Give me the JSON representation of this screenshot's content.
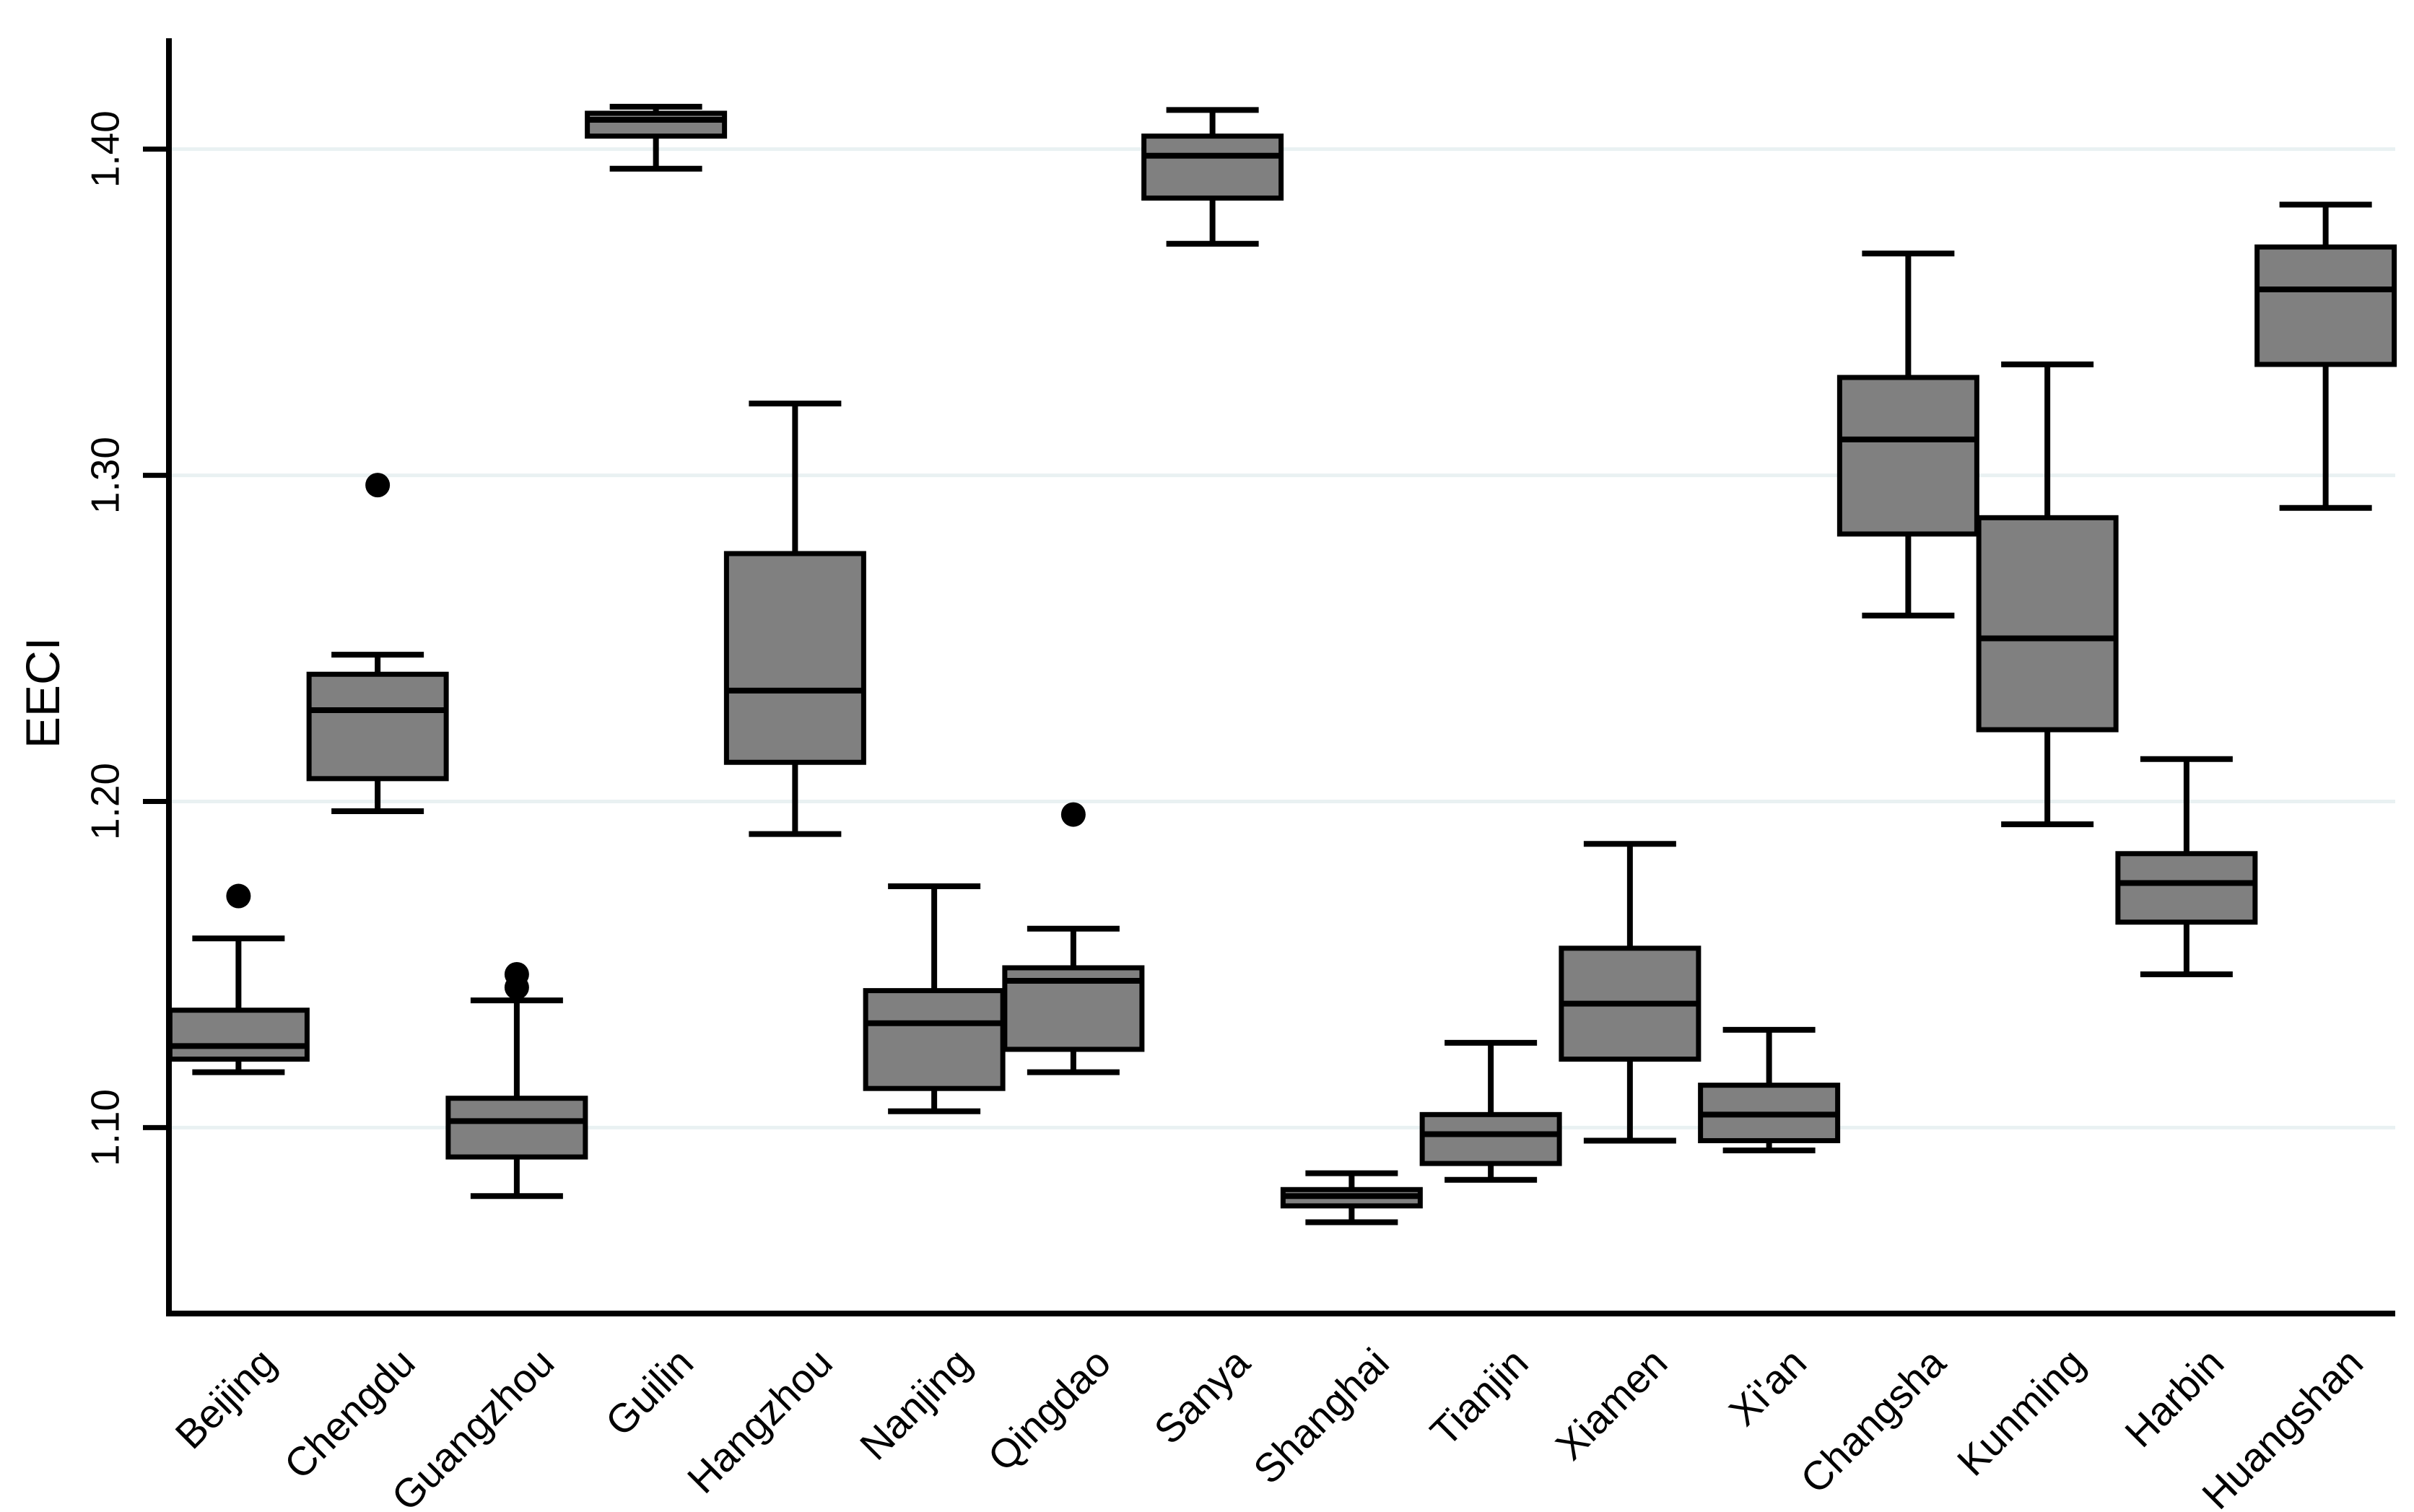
{
  "chart_data": {
    "type": "box",
    "title": "",
    "xlabel": "",
    "ylabel": "EECI",
    "ylim": [
      1.043,
      1.434
    ],
    "yticks": [
      1.1,
      1.2,
      1.3,
      1.4
    ],
    "ytick_labels": [
      "1.10",
      "1.20",
      "1.30",
      "1.40"
    ],
    "grid": "horizontal-gridlines-on",
    "legend": "none",
    "categories": [
      "Beijing",
      "Chengdu",
      "Guangzhou",
      "Guilin",
      "Hangzhou",
      "Nanjing",
      "Qingdao",
      "Sanya",
      "Shanghai",
      "Tianjin",
      "Xiamen",
      "Xi'an",
      "Changsha",
      "Kunming",
      "Harbin",
      "Huangshan"
    ],
    "series": [
      {
        "name": "Beijing",
        "whisker_low": 1.117,
        "q1": 1.121,
        "median": 1.125,
        "q3": 1.136,
        "whisker_high": 1.158,
        "outliers": [
          1.171
        ]
      },
      {
        "name": "Chengdu",
        "whisker_low": 1.197,
        "q1": 1.207,
        "median": 1.228,
        "q3": 1.239,
        "whisker_high": 1.245,
        "outliers": [
          1.297
        ]
      },
      {
        "name": "Guangzhou",
        "whisker_low": 1.079,
        "q1": 1.091,
        "median": 1.102,
        "q3": 1.109,
        "whisker_high": 1.139,
        "outliers": [
          1.143,
          1.147
        ]
      },
      {
        "name": "Guilin",
        "whisker_low": 1.394,
        "q1": 1.404,
        "median": 1.409,
        "q3": 1.411,
        "whisker_high": 1.413,
        "outliers": []
      },
      {
        "name": "Hangzhou",
        "whisker_low": 1.19,
        "q1": 1.212,
        "median": 1.234,
        "q3": 1.276,
        "whisker_high": 1.322,
        "outliers": []
      },
      {
        "name": "Nanjing",
        "whisker_low": 1.105,
        "q1": 1.112,
        "median": 1.132,
        "q3": 1.142,
        "whisker_high": 1.174,
        "outliers": []
      },
      {
        "name": "Qingdao",
        "whisker_low": 1.117,
        "q1": 1.124,
        "median": 1.145,
        "q3": 1.149,
        "whisker_high": 1.161,
        "outliers": [
          1.196
        ]
      },
      {
        "name": "Sanya",
        "whisker_low": 1.371,
        "q1": 1.385,
        "median": 1.398,
        "q3": 1.404,
        "whisker_high": 1.412,
        "outliers": []
      },
      {
        "name": "Shanghai",
        "whisker_low": 1.071,
        "q1": 1.076,
        "median": 1.079,
        "q3": 1.081,
        "whisker_high": 1.086,
        "outliers": []
      },
      {
        "name": "Tianjin",
        "whisker_low": 1.084,
        "q1": 1.089,
        "median": 1.098,
        "q3": 1.104,
        "whisker_high": 1.126,
        "outliers": []
      },
      {
        "name": "Xiamen",
        "whisker_low": 1.096,
        "q1": 1.121,
        "median": 1.138,
        "q3": 1.155,
        "whisker_high": 1.187,
        "outliers": []
      },
      {
        "name": "Xi'an",
        "whisker_low": 1.093,
        "q1": 1.096,
        "median": 1.104,
        "q3": 1.113,
        "whisker_high": 1.13,
        "outliers": []
      },
      {
        "name": "Changsha",
        "whisker_low": 1.257,
        "q1": 1.282,
        "median": 1.311,
        "q3": 1.33,
        "whisker_high": 1.368,
        "outliers": []
      },
      {
        "name": "Kunming",
        "whisker_low": 1.193,
        "q1": 1.222,
        "median": 1.25,
        "q3": 1.287,
        "whisker_high": 1.334,
        "outliers": []
      },
      {
        "name": "Harbin",
        "whisker_low": 1.147,
        "q1": 1.163,
        "median": 1.175,
        "q3": 1.184,
        "whisker_high": 1.213,
        "outliers": []
      },
      {
        "name": "Huangshan",
        "whisker_low": 1.29,
        "q1": 1.334,
        "median": 1.357,
        "q3": 1.37,
        "whisker_high": 1.383,
        "outliers": []
      }
    ]
  },
  "style": {
    "background": "#ffffff",
    "box_fill": "#808080",
    "box_stroke": "#000000",
    "whisker_color": "#000000",
    "median_color": "#000000",
    "outlier_color": "#000000",
    "axis_color": "#000000",
    "gridline_color": "#e9f1f2",
    "text_color": "#000000"
  }
}
